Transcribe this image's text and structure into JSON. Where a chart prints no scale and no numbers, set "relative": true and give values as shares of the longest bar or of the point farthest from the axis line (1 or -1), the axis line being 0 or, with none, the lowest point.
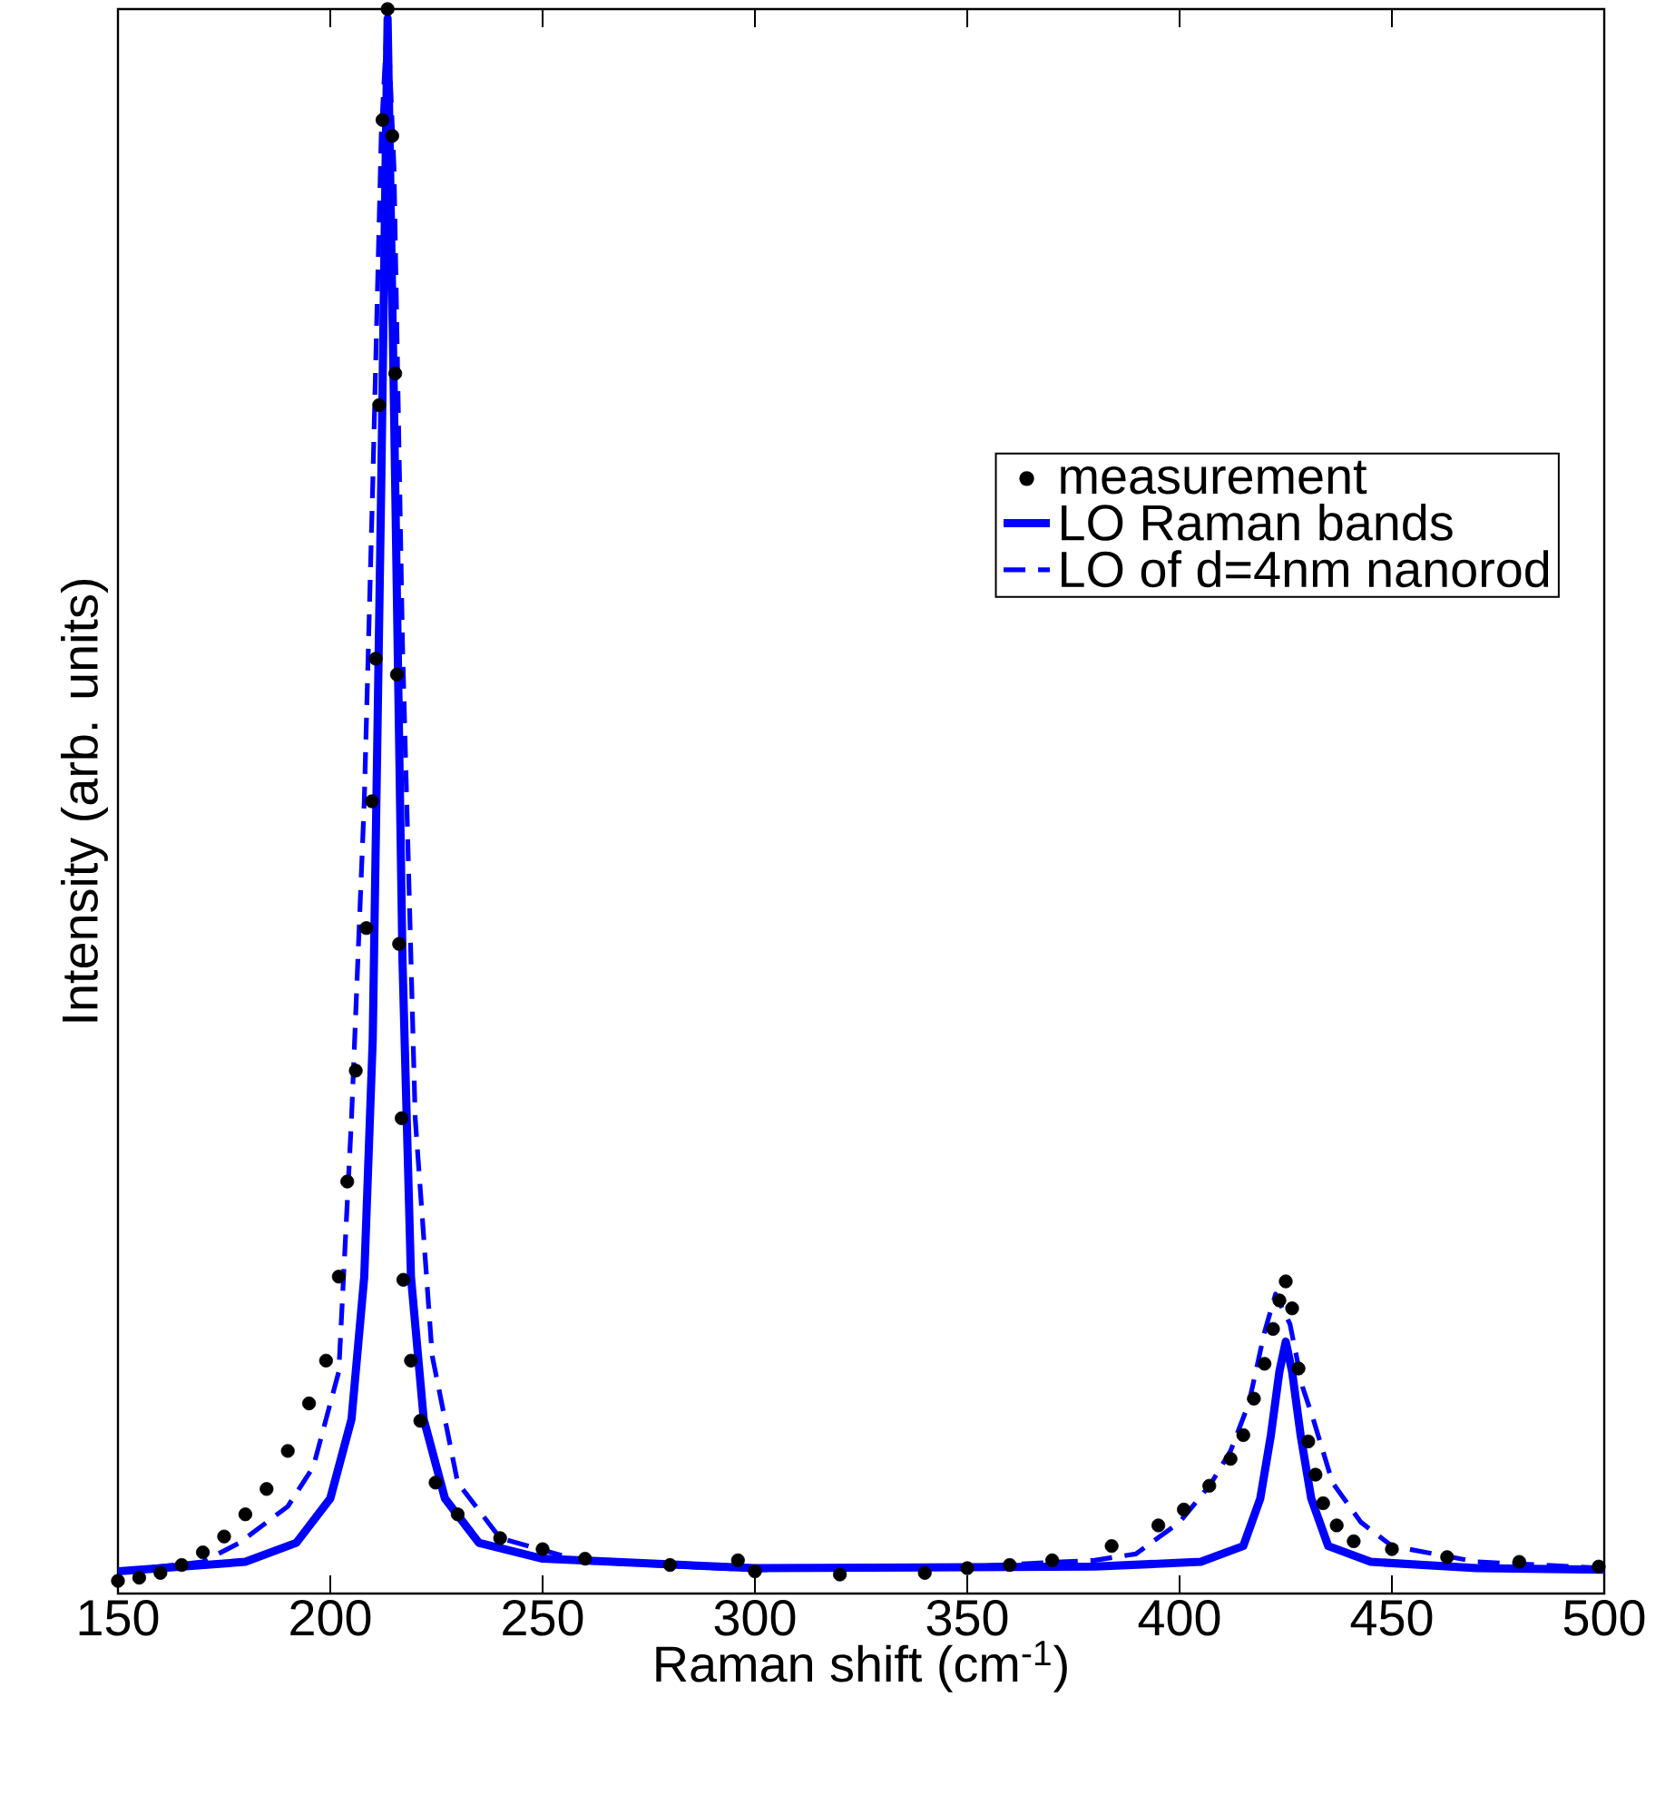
{
  "chart_data": {
    "type": "line",
    "xlabel": "Raman shift (cm$^{-1}$)",
    "ylabel": "Intensity (arb. units)",
    "relative": true,
    "xlim": [
      150,
      500
    ],
    "xticks": [
      150,
      200,
      250,
      300,
      350,
      400,
      450,
      500
    ],
    "legend": "top right",
    "grid": false,
    "series": [
      {
        "name": "measurement",
        "type": "scatter",
        "marker": "circle",
        "color": "#000000",
        "x": [
          150,
          155,
          160,
          165,
          170,
          175,
          180,
          185,
          190,
          195,
          199,
          202,
          204,
          206,
          208.5,
          209.8,
          210.7,
          211.5,
          212.3,
          213.5,
          214.6,
          215.3,
          215.7,
          216.2,
          216.8,
          217.2,
          219,
          221.2,
          224.8,
          230,
          240,
          250,
          260,
          280,
          296,
          300,
          320,
          340,
          350,
          360,
          370,
          384,
          395,
          401,
          407,
          412,
          415,
          417.5,
          420,
          422,
          423.5,
          425,
          426.5,
          428,
          430.3,
          432,
          433.8,
          437,
          441,
          450,
          463,
          480,
          498.7
        ],
        "values": [
          0.008,
          0.01,
          0.013,
          0.018,
          0.026,
          0.036,
          0.05,
          0.066,
          0.09,
          0.12,
          0.147,
          0.2,
          0.26,
          0.33,
          0.42,
          0.5,
          0.59,
          0.75,
          0.93,
          1.0,
          0.92,
          0.77,
          0.58,
          0.41,
          0.3,
          0.198,
          0.147,
          0.109,
          0.07,
          0.05,
          0.035,
          0.028,
          0.022,
          0.018,
          0.021,
          0.014,
          0.012,
          0.013,
          0.016,
          0.018,
          0.021,
          0.03,
          0.043,
          0.053,
          0.068,
          0.085,
          0.1,
          0.123,
          0.145,
          0.167,
          0.185,
          0.197,
          0.18,
          0.142,
          0.096,
          0.075,
          0.057,
          0.043,
          0.033,
          0.028,
          0.023,
          0.02,
          0.017
        ]
      },
      {
        "name": "LO Raman bands",
        "type": "line",
        "line_style": "solid",
        "color": "#0000ff",
        "x": [
          150,
          180,
          192,
          200,
          205,
          208,
          210,
          212,
          213.5,
          215,
          217,
          219,
          222,
          227,
          235,
          250,
          300,
          380,
          405,
          415,
          419,
          421.5,
          423.5,
          425,
          426.5,
          428.5,
          431,
          435,
          445,
          470,
          500
        ],
        "values": [
          0.014,
          0.02,
          0.032,
          0.06,
          0.11,
          0.2,
          0.35,
          0.7,
          0.994,
          0.75,
          0.4,
          0.2,
          0.11,
          0.06,
          0.032,
          0.022,
          0.016,
          0.017,
          0.02,
          0.03,
          0.06,
          0.1,
          0.14,
          0.159,
          0.14,
          0.1,
          0.06,
          0.03,
          0.02,
          0.016,
          0.015
        ]
      },
      {
        "name": "LO of d=4nm nanorod",
        "type": "line",
        "line_style": "dashed",
        "color": "#0000ff",
        "x": [
          150,
          170,
          178.6,
          190,
          196,
          202,
          205,
          208,
          210,
          212,
          213.5,
          215,
          217,
          220,
          224,
          230,
          240,
          260,
          300,
          350,
          380,
          389.7,
          400,
          407.3,
          412,
          416.3,
          420,
          422.6,
          426,
          429,
          431.6,
          436,
          442.7,
          450,
          470,
          500
        ],
        "values": [
          0.014,
          0.02,
          0.032,
          0.055,
          0.08,
          0.14,
          0.3,
          0.5,
          0.7,
          0.92,
          0.997,
          0.9,
          0.6,
          0.3,
          0.15,
          0.07,
          0.035,
          0.02,
          0.015,
          0.017,
          0.021,
          0.025,
          0.045,
          0.069,
          0.09,
          0.12,
          0.165,
          0.189,
          0.17,
          0.13,
          0.109,
          0.07,
          0.045,
          0.03,
          0.02,
          0.016
        ]
      }
    ]
  }
}
